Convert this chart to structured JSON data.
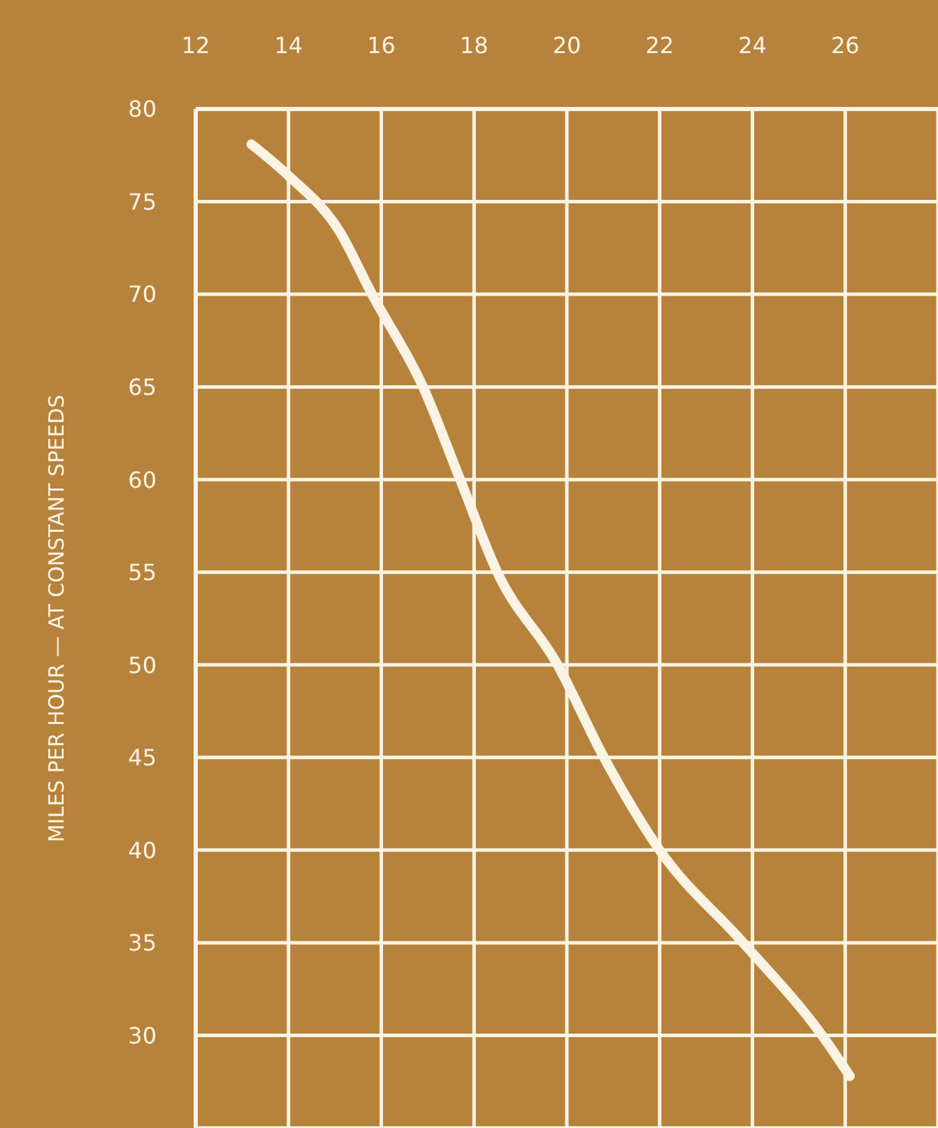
{
  "chart_data": {
    "type": "line",
    "ylabel": "MILES PER HOUR — AT CONSTANT SPEEDS",
    "x": [
      13.2,
      14,
      15.1,
      15.8,
      16.9,
      17.7,
      18.5,
      19.8,
      20.8,
      22,
      23.8,
      25.5,
      26.1
    ],
    "series": [
      {
        "color": "#fbf3e4",
        "values": [
          78.1,
          76.4,
          73.4,
          70,
          65,
          60,
          55,
          50,
          45,
          40,
          35,
          30,
          27.8
        ]
      }
    ],
    "xlim": [
      12,
      28
    ],
    "xticks": [
      12,
      14,
      16,
      18,
      20,
      22,
      24,
      26
    ],
    "ylim": [
      25,
      80
    ],
    "yticks": [
      30,
      35,
      40,
      45,
      50,
      55,
      60,
      65,
      70,
      75,
      80
    ],
    "grid": true,
    "marker": "none",
    "line_style": "solid"
  }
}
